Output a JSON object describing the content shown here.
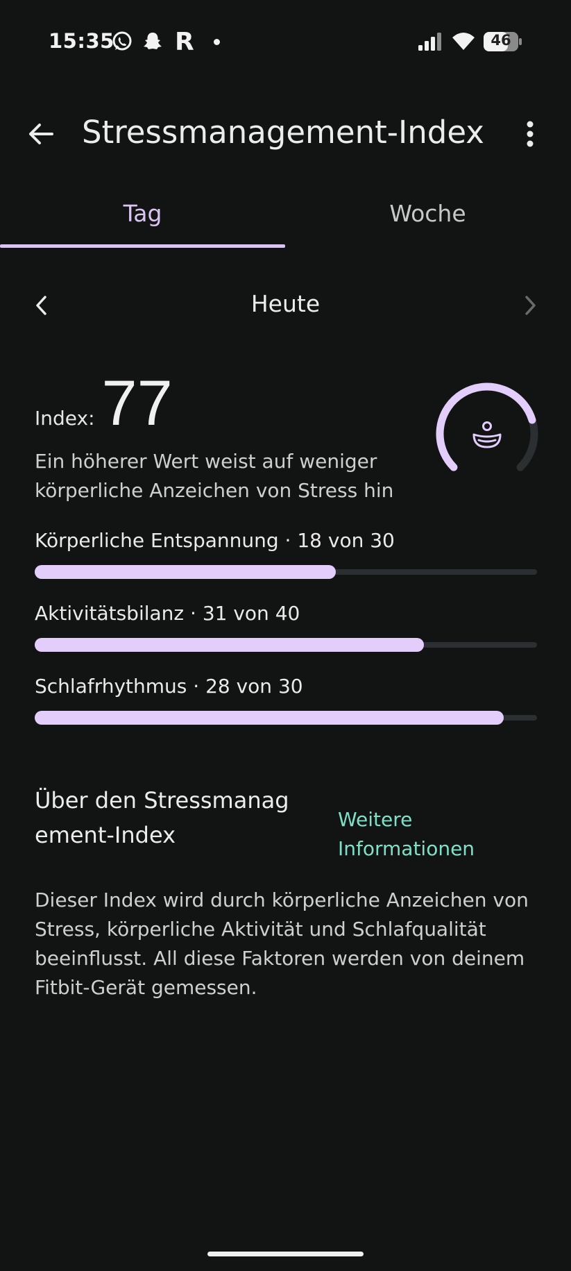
{
  "status_bar": {
    "time": "15:35",
    "icons": [
      "whatsapp-icon",
      "snapchat-icon",
      "r-app-icon",
      "notification-dot-icon",
      "signal-icon",
      "wifi-icon",
      "battery-icon"
    ],
    "battery_level": "46",
    "r_app_letter": "R"
  },
  "app_bar": {
    "title": "Stressmanagement-Index",
    "back_icon": "arrow-back-icon",
    "menu_icon": "more-vert-icon"
  },
  "tabs": [
    {
      "label": "Tag",
      "selected": true
    },
    {
      "label": "Woche",
      "selected": false
    }
  ],
  "date_nav": {
    "label": "Heute",
    "prev_icon": "chevron-left-icon",
    "next_icon": "chevron-right-icon"
  },
  "index": {
    "label": "Index:",
    "value": "77",
    "description": "Ein höherer Wert weist auf weniger körperliche Anzeichen von Stress hin",
    "gauge_fraction": 0.77,
    "gauge_icon": "meditation-icon"
  },
  "metrics": [
    {
      "label": "Körperliche Entspannung · 18 von 30",
      "value": 18,
      "max": 30
    },
    {
      "label": "Aktivitätsbilanz · 31 von 40",
      "value": 31,
      "max": 40
    },
    {
      "label": "Schlafrhythmus · 28 von 30",
      "value": 28,
      "max": 30
    }
  ],
  "about": {
    "title": "Über den Stressmanagement-Index",
    "link": "Weitere Informationen",
    "text": "Dieser Index wird durch körperliche Anzeichen von Stress, körperliche Aktivität und Schlafqualität beeinflusst. All diese Faktoren werden von deinem Fitbit-Gerät gemessen."
  },
  "colors": {
    "background": "#121414",
    "accent": "#e3cdfb",
    "tab_selected": "#d9c4f2",
    "link": "#7fe0c8",
    "track": "#2c2f31"
  }
}
